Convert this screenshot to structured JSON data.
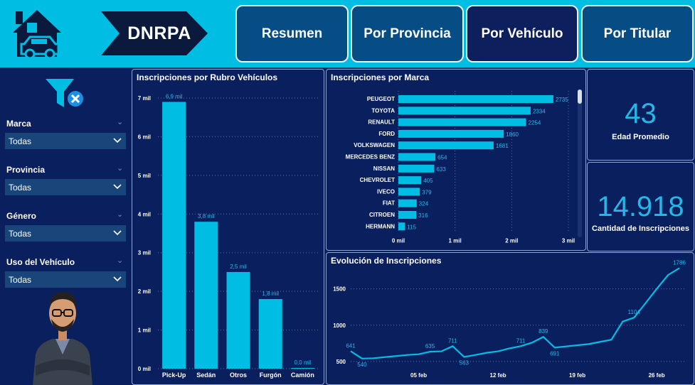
{
  "header": {
    "brand": "DNRPA",
    "nav": [
      "Resumen",
      "Por Provincia",
      "Por Vehículo",
      "Por Titular"
    ]
  },
  "icons": {
    "logo": "house-car-icon",
    "filter": "filter-clear-icon",
    "dropdown": "chevron-down-icon"
  },
  "colors": {
    "header": "#00bde4",
    "background": "#0a1f5e",
    "accent": "#00bde4",
    "nav_button": "#064d86"
  },
  "filters": [
    {
      "label": "Marca",
      "value": "Todas"
    },
    {
      "label": "Provincia",
      "value": "Todas"
    },
    {
      "label": "Género",
      "value": "Todas"
    },
    {
      "label": "Uso del Vehículo",
      "value": "Todas"
    }
  ],
  "kpis": {
    "edad": {
      "value": "43",
      "label": "Edad Promedio"
    },
    "inscripciones": {
      "value": "14.918",
      "label": "Cantidad de Inscripciones"
    }
  },
  "chart_data": [
    {
      "type": "bar",
      "title": "Inscripciones por Rubro Vehículos",
      "categories": [
        "Pick-Up",
        "Sedán",
        "Otros",
        "Furgón",
        "Camión"
      ],
      "values": [
        6900,
        3800,
        2500,
        1800,
        0
      ],
      "data_labels": [
        "6,9 mil",
        "3,8 mil",
        "2,5 mil",
        "1,8 mil",
        "0,0 mil"
      ],
      "ylim": [
        0,
        7000
      ],
      "yticks": [
        0,
        1000,
        2000,
        3000,
        4000,
        5000,
        6000,
        7000
      ],
      "ytick_labels": [
        "0 mil",
        "1 mil",
        "2 mil",
        "3 mil",
        "4 mil",
        "5 mil",
        "6 mil",
        "7 mil"
      ],
      "grid": true
    },
    {
      "type": "bar",
      "orientation": "horizontal",
      "title": "Inscripciones por Marca",
      "categories": [
        "PEUGEOT",
        "TOYOTA",
        "RENAULT",
        "FORD",
        "VOLKSWAGEN",
        "MERCEDES BENZ",
        "NISSAN",
        "CHEVROLET",
        "IVECO",
        "FIAT",
        "CITROEN",
        "HERMANN"
      ],
      "values": [
        2735,
        2334,
        2254,
        1860,
        1681,
        654,
        633,
        405,
        379,
        324,
        316,
        115
      ],
      "xlim": [
        0,
        3000
      ],
      "xticks": [
        0,
        1000,
        2000,
        3000
      ],
      "xtick_labels": [
        "0 mil",
        "1 mil",
        "2 mil",
        "3 mil"
      ],
      "grid": true
    },
    {
      "type": "line",
      "title": "Evolución de Inscripciones",
      "x": [
        "2024-01-30",
        "2024-01-31",
        "2024-02-01",
        "2024-02-02",
        "2024-02-03",
        "2024-02-04",
        "2024-02-05",
        "2024-02-06",
        "2024-02-07",
        "2024-02-08",
        "2024-02-09",
        "2024-02-10",
        "2024-02-11",
        "2024-02-12",
        "2024-02-13",
        "2024-02-14",
        "2024-02-15",
        "2024-02-16",
        "2024-02-17",
        "2024-02-20",
        "2024-02-22",
        "2024-02-23",
        "2024-02-24",
        "2024-02-25",
        "2024-02-26",
        "2024-02-27",
        "2024-02-28"
      ],
      "y": [
        641,
        540,
        545,
        560,
        575,
        590,
        600,
        635,
        640,
        711,
        563,
        590,
        620,
        640,
        680,
        711,
        760,
        839,
        691,
        740,
        800,
        1050,
        1104,
        1300,
        1500,
        1690,
        1786
      ],
      "point_labels": [
        {
          "i": 0,
          "text": "641"
        },
        {
          "i": 1,
          "text": "540"
        },
        {
          "i": 7,
          "text": "635"
        },
        {
          "i": 9,
          "text": "711"
        },
        {
          "i": 10,
          "text": "563"
        },
        {
          "i": 15,
          "text": "711"
        },
        {
          "i": 17,
          "text": "839"
        },
        {
          "i": 18,
          "text": "691"
        },
        {
          "i": 22,
          "text": "1104"
        },
        {
          "i": 26,
          "text": "1786"
        }
      ],
      "xtick_labels": [
        "05 feb",
        "12 feb",
        "19 feb",
        "26 feb"
      ],
      "ylim": [
        450,
        1800
      ],
      "yticks": [
        500,
        1000,
        1500
      ],
      "grid": true
    }
  ]
}
